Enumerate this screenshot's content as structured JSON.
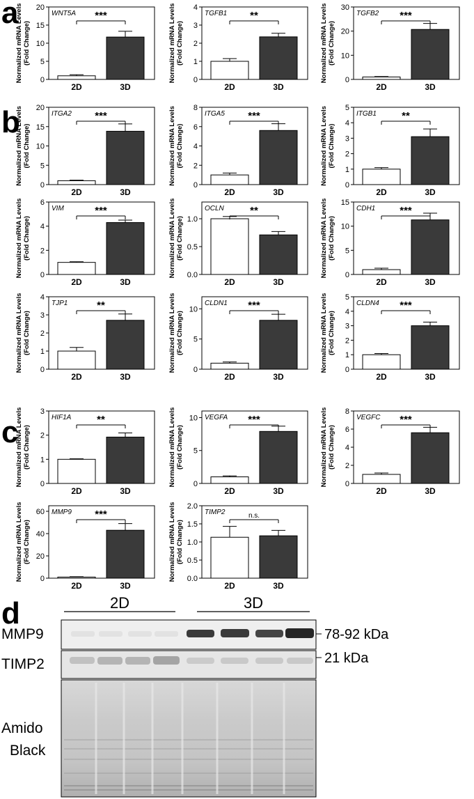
{
  "panel_labels": [
    "a",
    "b",
    "c",
    "d"
  ],
  "style": {
    "bar_2d": "#ffffff",
    "bar_3d": "#3a3a3a",
    "stroke": "#000000"
  },
  "chart_data": [
    {
      "type": "bar",
      "title": "WNT5A",
      "ylabel": "Normalized mRNA Levels",
      "ylabel2": "(Fold Change)",
      "categories": [
        "2D",
        "3D"
      ],
      "values": [
        1.0,
        11.7
      ],
      "errors": [
        0.3,
        1.6
      ],
      "ylim": [
        0,
        20
      ],
      "yticks": [
        "0",
        "5",
        "10",
        "15",
        "20"
      ],
      "yticks_num": [
        0,
        5,
        10,
        15,
        20
      ],
      "significance": "***"
    },
    {
      "type": "bar",
      "title": "TGFB1",
      "ylabel": "Normalized mRNA Levels",
      "ylabel2": "(Fold Change)",
      "categories": [
        "2D",
        "3D"
      ],
      "values": [
        1.0,
        2.35
      ],
      "errors": [
        0.15,
        0.2
      ],
      "ylim": [
        0,
        4
      ],
      "yticks": [
        "0",
        "1",
        "2",
        "3",
        "4"
      ],
      "yticks_num": [
        0,
        1,
        2,
        3,
        4
      ],
      "significance": "**"
    },
    {
      "type": "bar",
      "title": "TGFB2",
      "ylabel": "Normalized mRNA Levels",
      "ylabel2": "(Fold Change)",
      "categories": [
        "2D",
        "3D"
      ],
      "values": [
        1.0,
        20.7
      ],
      "errors": [
        0.2,
        2.5
      ],
      "ylim": [
        0,
        30
      ],
      "yticks": [
        "0",
        "10",
        "20",
        "30"
      ],
      "yticks_num": [
        0,
        10,
        20,
        30
      ],
      "significance": "***"
    },
    {
      "type": "bar",
      "title": "ITGA2",
      "ylabel": "Normalized mRNA Levels",
      "ylabel2": "(Fold Change)",
      "categories": [
        "2D",
        "3D"
      ],
      "values": [
        1.0,
        13.8
      ],
      "errors": [
        0.15,
        1.9
      ],
      "ylim": [
        0,
        20
      ],
      "yticks": [
        "0",
        "5",
        "10",
        "15",
        "20"
      ],
      "yticks_num": [
        0,
        5,
        10,
        15,
        20
      ],
      "significance": "***"
    },
    {
      "type": "bar",
      "title": "ITGA5",
      "ylabel": "Normalized mRNA Levels",
      "ylabel2": "(Fold Change)",
      "categories": [
        "2D",
        "3D"
      ],
      "values": [
        1.0,
        5.6
      ],
      "errors": [
        0.2,
        0.7
      ],
      "ylim": [
        0,
        8
      ],
      "yticks": [
        "0",
        "2",
        "4",
        "6",
        "8"
      ],
      "yticks_num": [
        0,
        2,
        4,
        6,
        8
      ],
      "significance": "***"
    },
    {
      "type": "bar",
      "title": "ITGB1",
      "ylabel": "Normalized mRNA Levels",
      "ylabel2": "(Fold Change)",
      "categories": [
        "2D",
        "3D"
      ],
      "values": [
        1.0,
        3.1
      ],
      "errors": [
        0.1,
        0.5
      ],
      "ylim": [
        0,
        5
      ],
      "yticks": [
        "0",
        "1",
        "2",
        "3",
        "4",
        "5"
      ],
      "yticks_num": [
        0,
        1,
        2,
        3,
        4,
        5
      ],
      "significance": "**"
    },
    {
      "type": "bar",
      "title": "VIM",
      "ylabel": "Normalized mRNA Levels",
      "ylabel2": "(Fold Change)",
      "categories": [
        "2D",
        "3D"
      ],
      "values": [
        1.0,
        4.3
      ],
      "errors": [
        0.05,
        0.2
      ],
      "ylim": [
        0,
        6
      ],
      "yticks": [
        "0",
        "2",
        "4",
        "6"
      ],
      "yticks_num": [
        0,
        2,
        4,
        6
      ],
      "significance": "***"
    },
    {
      "type": "bar",
      "title": "OCLN",
      "ylabel": "Normalized mRNA Levels",
      "ylabel2": "(Fold Change)",
      "categories": [
        "2D",
        "3D"
      ],
      "values": [
        1.0,
        0.71
      ],
      "errors": [
        0.04,
        0.06
      ],
      "ylim": [
        0,
        1.3
      ],
      "yticks": [
        "0.0",
        "0.5",
        "1.0"
      ],
      "yticks_num": [
        0,
        0.5,
        1.0
      ],
      "significance": "**"
    },
    {
      "type": "bar",
      "title": "CDH1",
      "ylabel": "Normalized mRNA Levels",
      "ylabel2": "(Fold Change)",
      "categories": [
        "2D",
        "3D"
      ],
      "values": [
        1.0,
        11.3
      ],
      "errors": [
        0.3,
        1.4
      ],
      "ylim": [
        0,
        15
      ],
      "yticks": [
        "0",
        "5",
        "10",
        "15"
      ],
      "yticks_num": [
        0,
        5,
        10,
        15
      ],
      "significance": "***"
    },
    {
      "type": "bar",
      "title": "TJP1",
      "ylabel": "Normalized mRNA Levels",
      "ylabel2": "(Fold Change)",
      "categories": [
        "2D",
        "3D"
      ],
      "values": [
        1.0,
        2.7
      ],
      "errors": [
        0.2,
        0.35
      ],
      "ylim": [
        0,
        4
      ],
      "yticks": [
        "0",
        "1",
        "2",
        "3",
        "4"
      ],
      "yticks_num": [
        0,
        1,
        2,
        3,
        4
      ],
      "significance": "**"
    },
    {
      "type": "bar",
      "title": "CLDN1",
      "ylabel": "Normalized mRNA Levels",
      "ylabel2": "(Fold Change)",
      "categories": [
        "2D",
        "3D"
      ],
      "values": [
        1.0,
        8.1
      ],
      "errors": [
        0.2,
        1.0
      ],
      "ylim": [
        0,
        12
      ],
      "yticks": [
        "0",
        "5",
        "10"
      ],
      "yticks_num": [
        0,
        5,
        10
      ],
      "significance": "***"
    },
    {
      "type": "bar",
      "title": "CLDN4",
      "ylabel": "Normalized mRNA Levels",
      "ylabel2": "(Fold Change)",
      "categories": [
        "2D",
        "3D"
      ],
      "values": [
        1.0,
        3.0
      ],
      "errors": [
        0.08,
        0.25
      ],
      "ylim": [
        0,
        5
      ],
      "yticks": [
        "0",
        "1",
        "2",
        "3",
        "4",
        "5"
      ],
      "yticks_num": [
        0,
        1,
        2,
        3,
        4,
        5
      ],
      "significance": "***"
    },
    {
      "type": "bar",
      "title": "HIF1A",
      "ylabel": "Normalized mRNA Levels",
      "ylabel2": "(Fold Change)",
      "categories": [
        "2D",
        "3D"
      ],
      "values": [
        1.0,
        1.92
      ],
      "errors": [
        0.02,
        0.17
      ],
      "ylim": [
        0,
        3
      ],
      "yticks": [
        "0",
        "1",
        "2",
        "3"
      ],
      "yticks_num": [
        0,
        1,
        2,
        3
      ],
      "significance": "**"
    },
    {
      "type": "bar",
      "title": "VEGFA",
      "ylabel": "Normalized mRNA Levels",
      "ylabel2": "(Fold Change)",
      "categories": [
        "2D",
        "3D"
      ],
      "values": [
        1.0,
        7.9
      ],
      "errors": [
        0.15,
        0.8
      ],
      "ylim": [
        0,
        11
      ],
      "yticks": [
        "0",
        "5",
        "10"
      ],
      "yticks_num": [
        0,
        5,
        10
      ],
      "significance": "***"
    },
    {
      "type": "bar",
      "title": "VEGFC",
      "ylabel": "Normalized mRNA Levels",
      "ylabel2": "(Fold Change)",
      "categories": [
        "2D",
        "3D"
      ],
      "values": [
        1.0,
        5.6
      ],
      "errors": [
        0.15,
        0.6
      ],
      "ylim": [
        0,
        8
      ],
      "yticks": [
        "0",
        "2",
        "4",
        "6",
        "8"
      ],
      "yticks_num": [
        0,
        2,
        4,
        6,
        8
      ],
      "significance": "***"
    },
    {
      "type": "bar",
      "title": "MMP9",
      "ylabel": "Normalized mRNA Levels",
      "ylabel2": "(Fold Change)",
      "categories": [
        "2D",
        "3D"
      ],
      "values": [
        1.0,
        43.0
      ],
      "errors": [
        0.3,
        6.0
      ],
      "ylim": [
        0,
        65
      ],
      "yticks": [
        "0",
        "20",
        "40",
        "60"
      ],
      "yticks_num": [
        0,
        20,
        40,
        60
      ],
      "significance": "***"
    },
    {
      "type": "bar",
      "title": "TIMP2",
      "ylabel": "Normalized mRNA Levels",
      "ylabel2": "(Fold Change)",
      "categories": [
        "2D",
        "3D"
      ],
      "values": [
        1.13,
        1.17
      ],
      "errors": [
        0.3,
        0.15
      ],
      "ylim": [
        0,
        2.0
      ],
      "yticks": [
        "0.0",
        "0.5",
        "1.0",
        "1.5",
        "2.0"
      ],
      "yticks_num": [
        0,
        0.5,
        1.0,
        1.5,
        2.0
      ],
      "significance": "n.s."
    }
  ],
  "western_blot": {
    "group_labels": [
      "2D",
      "3D"
    ],
    "rows": [
      {
        "label": "MMP9",
        "size_label": "78-92 kDa"
      },
      {
        "label": "TIMP2",
        "size_label": "21 kDa"
      },
      {
        "label": "Amido",
        "label2": "Black",
        "size_label": ""
      }
    ]
  }
}
